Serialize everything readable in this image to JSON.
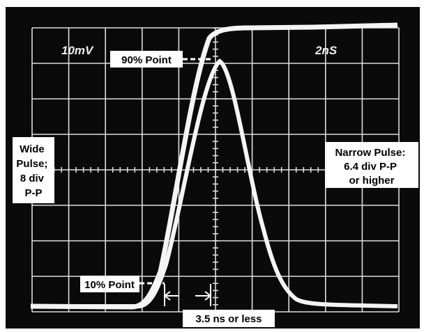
{
  "screen": {
    "volts_per_div": "10mV",
    "time_per_div": "2nS"
  },
  "annotations": {
    "point_90": "90% Point",
    "point_10": "10% Point",
    "wide_pulse": [
      "Wide",
      "Pulse;",
      "8 div",
      "P-P"
    ],
    "narrow_pulse": [
      "Narrow Pulse:",
      "6.4 div P-P",
      "or higher"
    ],
    "rise_time": "3.5 ns or less"
  }
}
